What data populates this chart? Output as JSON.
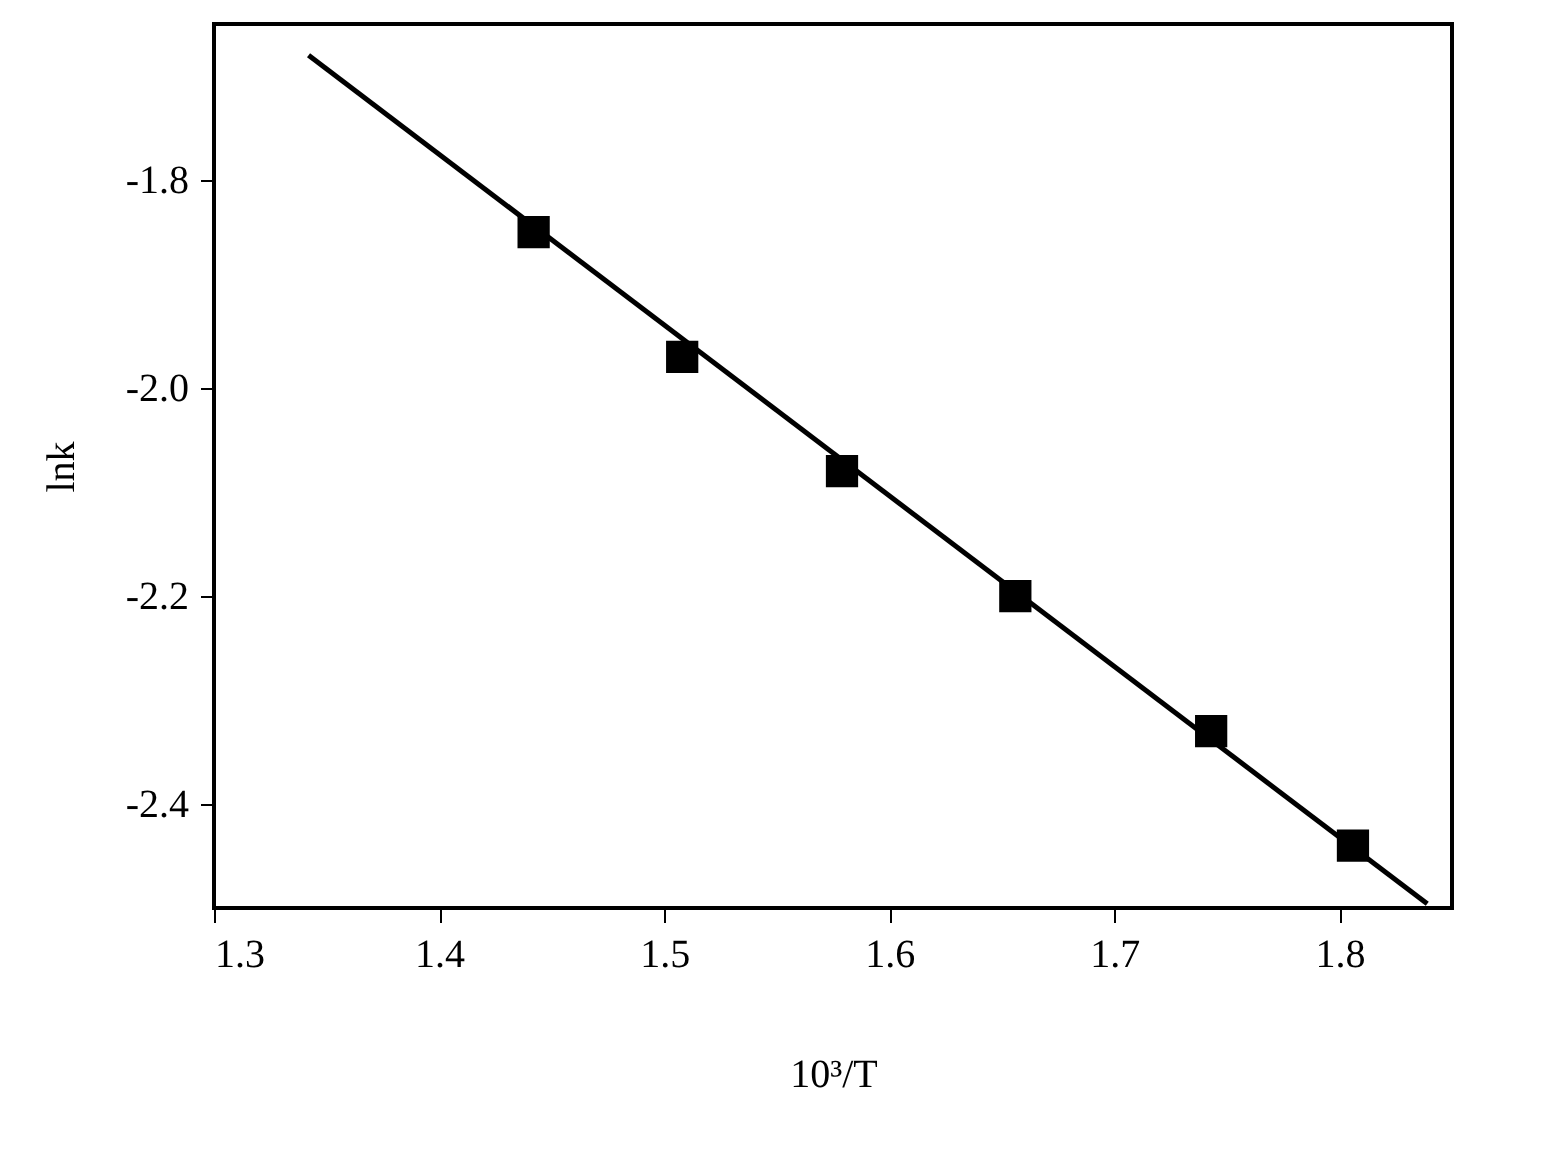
{
  "chart_data": {
    "type": "scatter",
    "xlabel": "10³/T",
    "ylabel": "lnk",
    "xlim": [
      1.3,
      1.85
    ],
    "ylim": [
      -2.5,
      -1.65
    ],
    "xticks": [
      1.3,
      1.4,
      1.5,
      1.6,
      1.7,
      1.8
    ],
    "yticks": [
      {
        "value": -2.4,
        "label": "-2.4"
      },
      {
        "value": -2.2,
        "label": "-2.2"
      },
      {
        "value": -2.0,
        "label": "-2.0"
      },
      {
        "value": -1.8,
        "label": "-1.8"
      }
    ],
    "grid": false,
    "marker": "square",
    "x": [
      1.442,
      1.508,
      1.579,
      1.656,
      1.743,
      1.806
    ],
    "series": [
      {
        "color": "#000000",
        "values": [
          -1.85,
          -1.97,
          -2.08,
          -2.2,
          -2.33,
          -2.44
        ]
      },
      {
        "type": "line",
        "color": "#000000",
        "x": [
          1.342,
          1.839
        ],
        "values": [
          -1.68,
          -2.496
        ],
        "marker": "none",
        "line_style": "solid"
      }
    ]
  }
}
